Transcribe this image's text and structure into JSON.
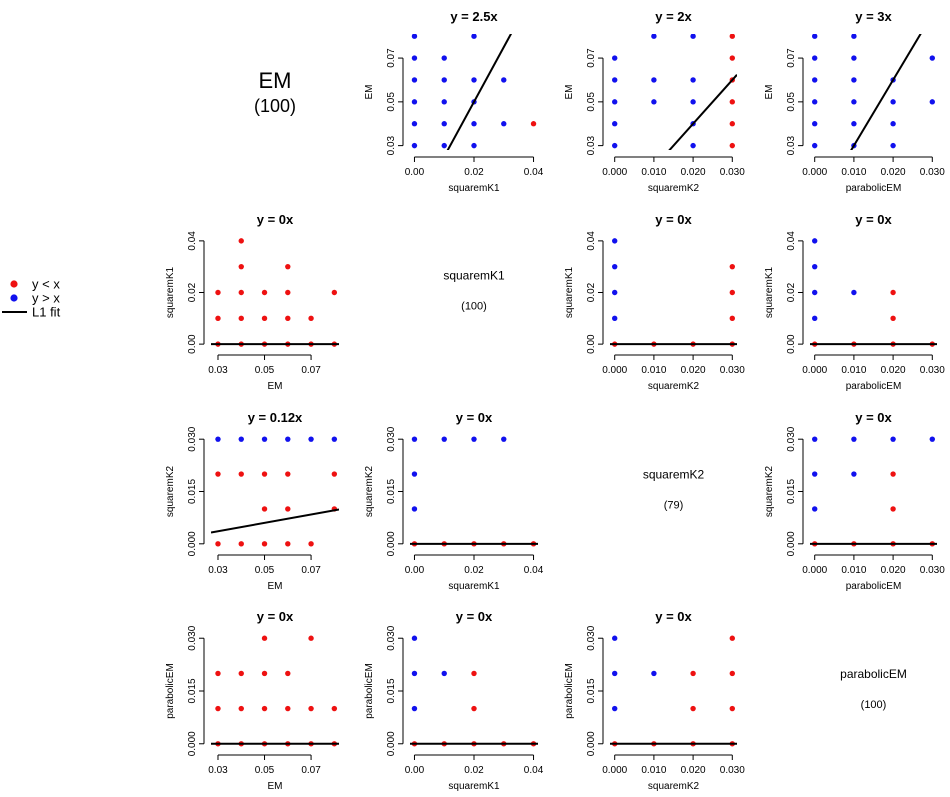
{
  "legend": {
    "items": [
      {
        "label": "y < x",
        "kind": "point",
        "color": "#ee1111"
      },
      {
        "label": "y > x",
        "kind": "point",
        "color": "#1111ee"
      },
      {
        "label": "L1 fit",
        "kind": "line",
        "color": "#000000"
      }
    ]
  },
  "colors": {
    "below": "#ee1111",
    "above": "#1111ee",
    "fit": "#000000"
  },
  "diagonal": [
    {
      "row": 0,
      "name": "EM",
      "n": "(100)",
      "big": true
    },
    {
      "row": 1,
      "name": "squaremK1",
      "n": "(100)",
      "big": false
    },
    {
      "row": 2,
      "name": "squaremK2",
      "n": "(79)",
      "big": false
    },
    {
      "row": 3,
      "name": "parabolicEM",
      "n": "(100)",
      "big": false
    }
  ],
  "axes": {
    "EM": {
      "label": "EM",
      "lim": [
        0.027,
        0.082
      ],
      "ticks": [
        "0.03",
        "0.05",
        "0.07"
      ],
      "tickvals": [
        0.03,
        0.05,
        0.07
      ]
    },
    "squaremK1": {
      "label": "squaremK1",
      "lim": [
        -0.0015,
        0.0415
      ],
      "ticks": [
        "0.00",
        "0.02",
        "0.04"
      ],
      "tickvals": [
        0.0,
        0.02,
        0.04
      ]
    },
    "squaremK2": {
      "label": "squaremK2",
      "lim": [
        -0.0012,
        0.0312
      ],
      "ticks": [
        "0.000",
        "0.010",
        "0.020",
        "0.030"
      ],
      "tickvals": [
        0.0,
        0.01,
        0.02,
        0.03
      ]
    },
    "parabolicEM": {
      "label": "parabolicEM",
      "lim": [
        -0.0012,
        0.0312
      ],
      "ticks": [
        "0.000",
        "0.010",
        "0.020",
        "0.030"
      ],
      "tickvals": [
        0.0,
        0.01,
        0.02,
        0.03
      ]
    },
    "EM_y": {
      "label": "EM",
      "lim": [
        0.028,
        0.081
      ],
      "ticks": [
        "0.03",
        "0.05",
        "0.07"
      ],
      "tickvals": [
        0.03,
        0.05,
        0.07
      ]
    },
    "sq1_y": {
      "label": "squaremK1",
      "lim": [
        -0.0015,
        0.0415
      ],
      "ticks": [
        "0.00",
        "0.02",
        "0.04"
      ],
      "tickvals": [
        0.0,
        0.02,
        0.04
      ]
    },
    "sq2_y": {
      "label": "squaremK2",
      "lim": [
        -0.0012,
        0.0312
      ],
      "ticks": [
        "0.000",
        "0.015",
        "0.030"
      ],
      "tickvals": [
        0.0,
        0.015,
        0.03
      ]
    },
    "par_y": {
      "label": "parabolicEM",
      "lim": [
        -0.0012,
        0.0312
      ],
      "ticks": [
        "0.000",
        "0.015",
        "0.030"
      ],
      "tickvals": [
        0.0,
        0.015,
        0.03
      ]
    }
  },
  "chart_data": [
    {
      "type": "scatter",
      "row": 0,
      "col": 1,
      "title": "y = 2.5x",
      "xlabel": "squaremK1",
      "ylabel": "EM",
      "xaxis": "squaremK1",
      "yaxis": "EM_y",
      "slope": 2.5,
      "points": [
        [
          0.0,
          0.08,
          "a"
        ],
        [
          0.0,
          0.07,
          "a"
        ],
        [
          0.0,
          0.06,
          "a"
        ],
        [
          0.0,
          0.05,
          "a"
        ],
        [
          0.0,
          0.04,
          "a"
        ],
        [
          0.0,
          0.03,
          "a"
        ],
        [
          0.01,
          0.07,
          "a"
        ],
        [
          0.01,
          0.06,
          "a"
        ],
        [
          0.01,
          0.05,
          "a"
        ],
        [
          0.01,
          0.04,
          "a"
        ],
        [
          0.01,
          0.03,
          "a"
        ],
        [
          0.02,
          0.08,
          "a"
        ],
        [
          0.02,
          0.06,
          "a"
        ],
        [
          0.02,
          0.05,
          "a"
        ],
        [
          0.02,
          0.04,
          "a"
        ],
        [
          0.02,
          0.03,
          "a"
        ],
        [
          0.03,
          0.06,
          "a"
        ],
        [
          0.03,
          0.04,
          "a"
        ],
        [
          0.04,
          0.04,
          "b"
        ]
      ]
    },
    {
      "type": "scatter",
      "row": 0,
      "col": 2,
      "title": "y = 2x",
      "xlabel": "squaremK2",
      "ylabel": "EM",
      "xaxis": "squaremK2",
      "yaxis": "EM_y",
      "slope": 2,
      "points": [
        [
          0.0,
          0.07,
          "a"
        ],
        [
          0.0,
          0.06,
          "a"
        ],
        [
          0.0,
          0.05,
          "a"
        ],
        [
          0.0,
          0.04,
          "a"
        ],
        [
          0.0,
          0.03,
          "a"
        ],
        [
          0.01,
          0.08,
          "a"
        ],
        [
          0.01,
          0.06,
          "a"
        ],
        [
          0.01,
          0.05,
          "a"
        ],
        [
          0.02,
          0.08,
          "a"
        ],
        [
          0.02,
          0.06,
          "a"
        ],
        [
          0.02,
          0.05,
          "a"
        ],
        [
          0.02,
          0.04,
          "a"
        ],
        [
          0.02,
          0.03,
          "a"
        ],
        [
          0.03,
          0.08,
          "b"
        ],
        [
          0.03,
          0.07,
          "b"
        ],
        [
          0.03,
          0.06,
          "b"
        ],
        [
          0.03,
          0.05,
          "b"
        ],
        [
          0.03,
          0.04,
          "b"
        ],
        [
          0.03,
          0.03,
          "b"
        ]
      ]
    },
    {
      "type": "scatter",
      "row": 0,
      "col": 3,
      "title": "y = 3x",
      "xlabel": "parabolicEM",
      "ylabel": "EM",
      "xaxis": "parabolicEM",
      "yaxis": "EM_y",
      "slope": 3,
      "points": [
        [
          0.0,
          0.08,
          "a"
        ],
        [
          0.0,
          0.07,
          "a"
        ],
        [
          0.0,
          0.06,
          "a"
        ],
        [
          0.0,
          0.05,
          "a"
        ],
        [
          0.0,
          0.04,
          "a"
        ],
        [
          0.0,
          0.03,
          "a"
        ],
        [
          0.01,
          0.08,
          "a"
        ],
        [
          0.01,
          0.07,
          "a"
        ],
        [
          0.01,
          0.06,
          "a"
        ],
        [
          0.01,
          0.05,
          "a"
        ],
        [
          0.01,
          0.04,
          "a"
        ],
        [
          0.01,
          0.03,
          "a"
        ],
        [
          0.02,
          0.06,
          "a"
        ],
        [
          0.02,
          0.05,
          "a"
        ],
        [
          0.02,
          0.04,
          "a"
        ],
        [
          0.02,
          0.03,
          "a"
        ],
        [
          0.03,
          0.07,
          "a"
        ],
        [
          0.03,
          0.05,
          "a"
        ]
      ]
    },
    {
      "type": "scatter",
      "row": 1,
      "col": 0,
      "title": "y = 0x",
      "xlabel": "EM",
      "ylabel": "squaremK1",
      "xaxis": "EM",
      "yaxis": "sq1_y",
      "slope": 0,
      "points": [
        [
          0.03,
          0.02,
          "b"
        ],
        [
          0.03,
          0.01,
          "b"
        ],
        [
          0.03,
          0.0,
          "b"
        ],
        [
          0.04,
          0.04,
          "b"
        ],
        [
          0.04,
          0.03,
          "b"
        ],
        [
          0.04,
          0.02,
          "b"
        ],
        [
          0.04,
          0.01,
          "b"
        ],
        [
          0.04,
          0.0,
          "b"
        ],
        [
          0.05,
          0.02,
          "b"
        ],
        [
          0.05,
          0.01,
          "b"
        ],
        [
          0.05,
          0.0,
          "b"
        ],
        [
          0.06,
          0.03,
          "b"
        ],
        [
          0.06,
          0.02,
          "b"
        ],
        [
          0.06,
          0.01,
          "b"
        ],
        [
          0.06,
          0.0,
          "b"
        ],
        [
          0.07,
          0.01,
          "b"
        ],
        [
          0.07,
          0.0,
          "b"
        ],
        [
          0.08,
          0.02,
          "b"
        ],
        [
          0.08,
          0.0,
          "b"
        ]
      ]
    },
    {
      "type": "scatter",
      "row": 1,
      "col": 2,
      "title": "y = 0x",
      "xlabel": "squaremK2",
      "ylabel": "squaremK1",
      "xaxis": "squaremK2",
      "yaxis": "sq1_y",
      "slope": 0,
      "points": [
        [
          0.0,
          0.04,
          "a"
        ],
        [
          0.0,
          0.03,
          "a"
        ],
        [
          0.0,
          0.02,
          "a"
        ],
        [
          0.0,
          0.01,
          "a"
        ],
        [
          0.0,
          0.0,
          "b"
        ],
        [
          0.01,
          0.0,
          "b"
        ],
        [
          0.02,
          0.0,
          "b"
        ],
        [
          0.03,
          0.03,
          "b"
        ],
        [
          0.03,
          0.02,
          "b"
        ],
        [
          0.03,
          0.01,
          "b"
        ],
        [
          0.03,
          0.0,
          "b"
        ]
      ]
    },
    {
      "type": "scatter",
      "row": 1,
      "col": 3,
      "title": "y = 0x",
      "xlabel": "parabolicEM",
      "ylabel": "squaremK1",
      "xaxis": "parabolicEM",
      "yaxis": "sq1_y",
      "slope": 0,
      "points": [
        [
          0.0,
          0.04,
          "a"
        ],
        [
          0.0,
          0.03,
          "a"
        ],
        [
          0.0,
          0.02,
          "a"
        ],
        [
          0.0,
          0.01,
          "a"
        ],
        [
          0.0,
          0.0,
          "b"
        ],
        [
          0.01,
          0.02,
          "a"
        ],
        [
          0.01,
          0.0,
          "b"
        ],
        [
          0.02,
          0.02,
          "b"
        ],
        [
          0.02,
          0.01,
          "b"
        ],
        [
          0.02,
          0.0,
          "b"
        ],
        [
          0.03,
          0.0,
          "b"
        ]
      ]
    },
    {
      "type": "scatter",
      "row": 2,
      "col": 0,
      "title": "y = 0.12x",
      "xlabel": "EM",
      "ylabel": "squaremK2",
      "xaxis": "EM",
      "yaxis": "sq2_y",
      "slope": 0.12,
      "points": [
        [
          0.03,
          0.03,
          "a"
        ],
        [
          0.04,
          0.03,
          "a"
        ],
        [
          0.05,
          0.03,
          "a"
        ],
        [
          0.06,
          0.03,
          "a"
        ],
        [
          0.07,
          0.03,
          "a"
        ],
        [
          0.08,
          0.03,
          "a"
        ],
        [
          0.03,
          0.02,
          "b"
        ],
        [
          0.04,
          0.02,
          "b"
        ],
        [
          0.05,
          0.02,
          "b"
        ],
        [
          0.06,
          0.02,
          "b"
        ],
        [
          0.08,
          0.02,
          "b"
        ],
        [
          0.05,
          0.01,
          "b"
        ],
        [
          0.06,
          0.01,
          "b"
        ],
        [
          0.08,
          0.01,
          "b"
        ],
        [
          0.03,
          0.0,
          "b"
        ],
        [
          0.04,
          0.0,
          "b"
        ],
        [
          0.05,
          0.0,
          "b"
        ],
        [
          0.06,
          0.0,
          "b"
        ],
        [
          0.07,
          0.0,
          "b"
        ]
      ]
    },
    {
      "type": "scatter",
      "row": 2,
      "col": 1,
      "title": "y = 0x",
      "xlabel": "squaremK1",
      "ylabel": "squaremK2",
      "xaxis": "squaremK1",
      "yaxis": "sq2_y",
      "slope": 0,
      "points": [
        [
          0.0,
          0.03,
          "a"
        ],
        [
          0.0,
          0.02,
          "a"
        ],
        [
          0.0,
          0.01,
          "a"
        ],
        [
          0.0,
          0.0,
          "b"
        ],
        [
          0.01,
          0.03,
          "a"
        ],
        [
          0.02,
          0.03,
          "a"
        ],
        [
          0.03,
          0.03,
          "a"
        ],
        [
          0.01,
          0.0,
          "b"
        ],
        [
          0.02,
          0.0,
          "b"
        ],
        [
          0.03,
          0.0,
          "b"
        ],
        [
          0.04,
          0.0,
          "b"
        ]
      ]
    },
    {
      "type": "scatter",
      "row": 2,
      "col": 3,
      "title": "y = 0x",
      "xlabel": "parabolicEM",
      "ylabel": "squaremK2",
      "xaxis": "parabolicEM",
      "yaxis": "sq2_y",
      "slope": 0,
      "points": [
        [
          0.0,
          0.03,
          "a"
        ],
        [
          0.0,
          0.02,
          "a"
        ],
        [
          0.0,
          0.01,
          "a"
        ],
        [
          0.0,
          0.0,
          "b"
        ],
        [
          0.01,
          0.03,
          "a"
        ],
        [
          0.01,
          0.02,
          "a"
        ],
        [
          0.01,
          0.0,
          "b"
        ],
        [
          0.02,
          0.03,
          "a"
        ],
        [
          0.02,
          0.02,
          "b"
        ],
        [
          0.02,
          0.01,
          "b"
        ],
        [
          0.02,
          0.0,
          "b"
        ],
        [
          0.03,
          0.03,
          "a"
        ],
        [
          0.03,
          0.0,
          "b"
        ]
      ]
    },
    {
      "type": "scatter",
      "row": 3,
      "col": 0,
      "title": "y = 0x",
      "xlabel": "EM",
      "ylabel": "parabolicEM",
      "xaxis": "EM",
      "yaxis": "par_y",
      "slope": 0,
      "points": [
        [
          0.03,
          0.02,
          "b"
        ],
        [
          0.03,
          0.01,
          "b"
        ],
        [
          0.03,
          0.0,
          "b"
        ],
        [
          0.04,
          0.02,
          "b"
        ],
        [
          0.04,
          0.01,
          "b"
        ],
        [
          0.04,
          0.0,
          "b"
        ],
        [
          0.05,
          0.03,
          "b"
        ],
        [
          0.05,
          0.02,
          "b"
        ],
        [
          0.05,
          0.01,
          "b"
        ],
        [
          0.05,
          0.0,
          "b"
        ],
        [
          0.06,
          0.02,
          "b"
        ],
        [
          0.06,
          0.01,
          "b"
        ],
        [
          0.06,
          0.0,
          "b"
        ],
        [
          0.07,
          0.03,
          "b"
        ],
        [
          0.07,
          0.01,
          "b"
        ],
        [
          0.07,
          0.0,
          "b"
        ],
        [
          0.08,
          0.01,
          "b"
        ],
        [
          0.08,
          0.0,
          "b"
        ]
      ]
    },
    {
      "type": "scatter",
      "row": 3,
      "col": 1,
      "title": "y = 0x",
      "xlabel": "squaremK1",
      "ylabel": "parabolicEM",
      "xaxis": "squaremK1",
      "yaxis": "par_y",
      "slope": 0,
      "points": [
        [
          0.0,
          0.03,
          "a"
        ],
        [
          0.0,
          0.02,
          "a"
        ],
        [
          0.0,
          0.01,
          "a"
        ],
        [
          0.0,
          0.0,
          "b"
        ],
        [
          0.01,
          0.02,
          "a"
        ],
        [
          0.01,
          0.0,
          "b"
        ],
        [
          0.02,
          0.02,
          "b"
        ],
        [
          0.02,
          0.01,
          "b"
        ],
        [
          0.02,
          0.0,
          "b"
        ],
        [
          0.03,
          0.0,
          "b"
        ],
        [
          0.04,
          0.0,
          "b"
        ]
      ]
    },
    {
      "type": "scatter",
      "row": 3,
      "col": 2,
      "title": "y = 0x",
      "xlabel": "squaremK2",
      "ylabel": "parabolicEM",
      "xaxis": "squaremK2",
      "yaxis": "par_y",
      "slope": 0,
      "points": [
        [
          0.0,
          0.03,
          "a"
        ],
        [
          0.0,
          0.02,
          "a"
        ],
        [
          0.0,
          0.01,
          "a"
        ],
        [
          0.0,
          0.0,
          "b"
        ],
        [
          0.01,
          0.02,
          "a"
        ],
        [
          0.01,
          0.0,
          "b"
        ],
        [
          0.02,
          0.02,
          "b"
        ],
        [
          0.02,
          0.01,
          "b"
        ],
        [
          0.02,
          0.0,
          "b"
        ],
        [
          0.03,
          0.03,
          "b"
        ],
        [
          0.03,
          0.02,
          "b"
        ],
        [
          0.03,
          0.01,
          "b"
        ],
        [
          0.03,
          0.0,
          "b"
        ]
      ]
    }
  ]
}
